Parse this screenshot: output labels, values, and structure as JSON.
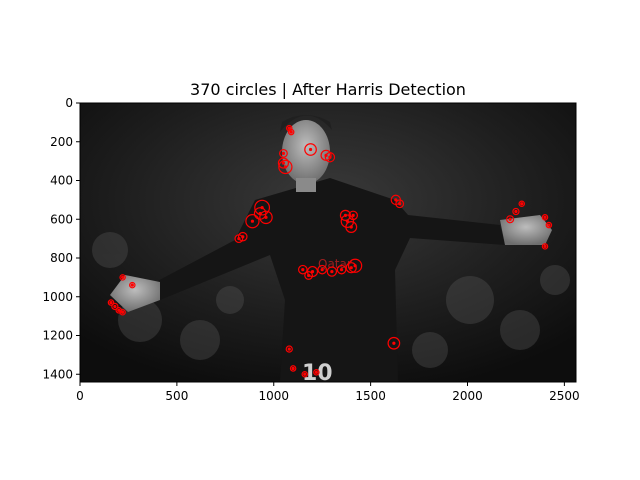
{
  "figure": {
    "title": "370 circles | After Harris Detection"
  },
  "axes": {
    "x_ticks": [
      "0",
      "500",
      "1000",
      "1500",
      "2000",
      "2500"
    ],
    "y_ticks": [
      "0",
      "200",
      "400",
      "600",
      "800",
      "1000",
      "1200",
      "1400"
    ],
    "x_tick_values": [
      0,
      500,
      1000,
      1500,
      2000,
      2500
    ],
    "y_tick_values": [
      0,
      200,
      400,
      600,
      800,
      1000,
      1200,
      1400
    ],
    "x_range": [
      0,
      2560
    ],
    "y_range": [
      1440,
      0
    ],
    "grid": false
  },
  "image": {
    "description_kind": "grayscale photograph with red circle markers",
    "marker_color": "#ff0000",
    "jersey_text": "10",
    "circle_count": 370
  },
  "colors": {
    "marker": "#ff0000",
    "axis": "#000000",
    "background": "#ffffff"
  }
}
